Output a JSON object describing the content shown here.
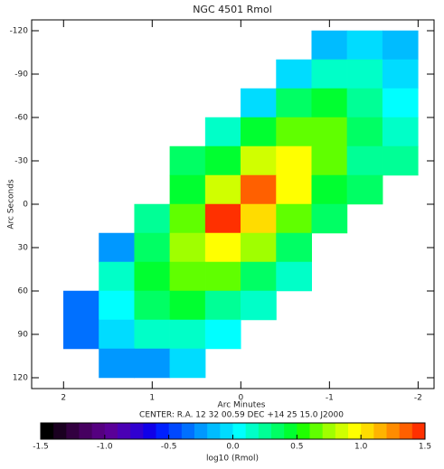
{
  "chart_data": {
    "type": "contour",
    "title": "NGC 4501 Rmol",
    "x_label": "Arc Minutes",
    "y_label": "Arc Seconds",
    "caption": "CENTER:  R.A. 12 32 00.59   DEC  +14 25 15.0   J2000",
    "colorbar_label": "log10 (Rmol)",
    "xlim": [
      2.36,
      -2.18
    ],
    "ylim": [
      -127.5,
      127.5
    ],
    "xticks": [
      2,
      1,
      0,
      -1,
      -2
    ],
    "yticks": [
      -120,
      -90,
      -60,
      -30,
      0,
      30,
      60,
      90,
      120
    ],
    "zlim": [
      -1.5,
      1.5
    ],
    "zticks": [
      -1.5,
      {
        "value": -1.0,
        "label": "-1.0"
      },
      -0.5,
      {
        "value": 0,
        "label": "0.0"
      },
      0.5,
      {
        "value": 1.0,
        "label": "1.0"
      },
      1.5
    ],
    "colormap": [
      "#000000",
      "#1a0020",
      "#320040",
      "#460060",
      "#550080",
      "#5a0098",
      "#4a00b4",
      "#3000d0",
      "#1000e8",
      "#0020ff",
      "#0048ff",
      "#0070ff",
      "#0098ff",
      "#00bcff",
      "#00dcff",
      "#00ffff",
      "#00ffc8",
      "#00ff96",
      "#00ff64",
      "#00ff30",
      "#20ff00",
      "#60ff00",
      "#a0ff00",
      "#d0ff00",
      "#ffff00",
      "#ffdc00",
      "#ffb400",
      "#ff8c00",
      "#ff6000",
      "#ff3000"
    ],
    "x": [
      1.8,
      1.4,
      1.0,
      0.6,
      0.2,
      -0.2,
      -0.6,
      -1.0,
      -1.4,
      -1.8
    ],
    "y": [
      -110,
      -90,
      -70,
      -50,
      -30,
      -10,
      10,
      30,
      50,
      70,
      90,
      110
    ],
    "z": [
      [
        null,
        null,
        null,
        null,
        null,
        null,
        null,
        -0.2,
        -0.1,
        -0.2
      ],
      [
        null,
        null,
        null,
        null,
        null,
        null,
        -0.1,
        0.1,
        0.1,
        -0.1
      ],
      [
        null,
        null,
        null,
        null,
        null,
        -0.1,
        0.3,
        0.4,
        0.2,
        0.0
      ],
      [
        null,
        null,
        null,
        null,
        0.1,
        0.4,
        0.6,
        0.6,
        0.3,
        0.1
      ],
      [
        null,
        null,
        null,
        0.3,
        0.4,
        0.8,
        0.9,
        0.6,
        0.2,
        0.2
      ],
      [
        null,
        null,
        null,
        0.4,
        0.8,
        1.3,
        0.9,
        0.4,
        0.3,
        null
      ],
      [
        null,
        null,
        0.2,
        0.6,
        1.4,
        1.0,
        0.6,
        0.3,
        null,
        null
      ],
      [
        null,
        -0.3,
        0.3,
        0.7,
        0.9,
        0.7,
        0.3,
        null,
        null,
        null
      ],
      [
        null,
        0.1,
        0.4,
        0.6,
        0.6,
        0.3,
        0.1,
        null,
        null,
        null
      ],
      [
        -0.4,
        0.0,
        0.3,
        0.4,
        0.2,
        0.1,
        null,
        null,
        null,
        null
      ],
      [
        -0.4,
        -0.1,
        0.1,
        0.1,
        0.0,
        null,
        null,
        null,
        null,
        null
      ],
      [
        null,
        -0.3,
        -0.3,
        -0.1,
        null,
        null,
        null,
        null,
        null,
        null
      ]
    ]
  }
}
